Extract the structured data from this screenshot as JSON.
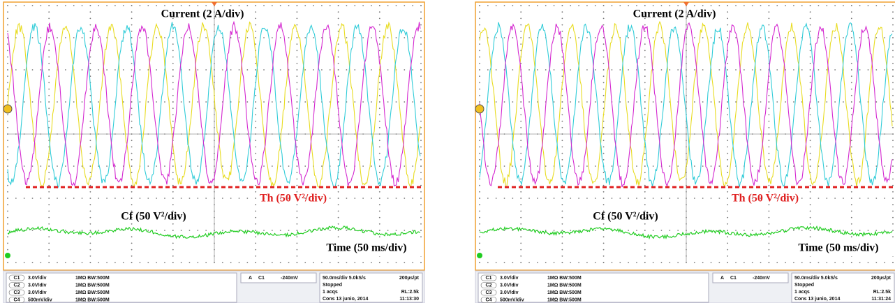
{
  "panels": [
    {
      "labels": {
        "current": "Current (2 A/div)",
        "threshold": "Th (50 V²/div)",
        "cf": "Cf (50 V²/div)",
        "time": "Time (50 ms/div)"
      },
      "channels": [
        {
          "id": "C1",
          "scale": "3.0V/div",
          "input": "1MΩ BW:500M"
        },
        {
          "id": "C2",
          "scale": "3.0V/div",
          "input": "1MΩ BW:500M"
        },
        {
          "id": "C3",
          "scale": "3.0V/div",
          "input": "1MΩ BW:500M"
        },
        {
          "id": "C4",
          "scale": "500mV/div",
          "input": "1MΩ BW:500M"
        }
      ],
      "trigger": {
        "mode": "A",
        "source": "C1",
        "level": "-240mV"
      },
      "acquisition": {
        "timebase": "50.0ms/div 5.0kS/s",
        "resolution": "200µs/pt",
        "state": "Stopped",
        "count": "1 acqs",
        "record": "RL:2.5k",
        "date": "Cons  13 junio, 2014",
        "clock": "11:13:30"
      }
    },
    {
      "labels": {
        "current": "Current (2 A/div)",
        "threshold": "Th (50 V²/div)",
        "cf": "Cf (50 V²/div)",
        "time": "Time (50 ms/div)"
      },
      "channels": [
        {
          "id": "C1",
          "scale": "3.0V/div",
          "input": "1MΩ BW:500M"
        },
        {
          "id": "C2",
          "scale": "3.0V/div",
          "input": "1MΩ BW:500M"
        },
        {
          "id": "C3",
          "scale": "3.0V/div",
          "input": "1MΩ BW:500M"
        },
        {
          "id": "C4",
          "scale": "500mV/div",
          "input": "1MΩ BW:500M"
        }
      ],
      "trigger": {
        "mode": "A",
        "source": "C1",
        "level": "-240mV"
      },
      "acquisition": {
        "timebase": "50.0ms/div 5.0kS/s",
        "resolution": "200µs/pt",
        "state": "Stopped",
        "count": "1 acqs",
        "record": "RL:2.5k",
        "date": "Cons  13 junio, 2014",
        "clock": "11:31:24"
      }
    }
  ]
}
